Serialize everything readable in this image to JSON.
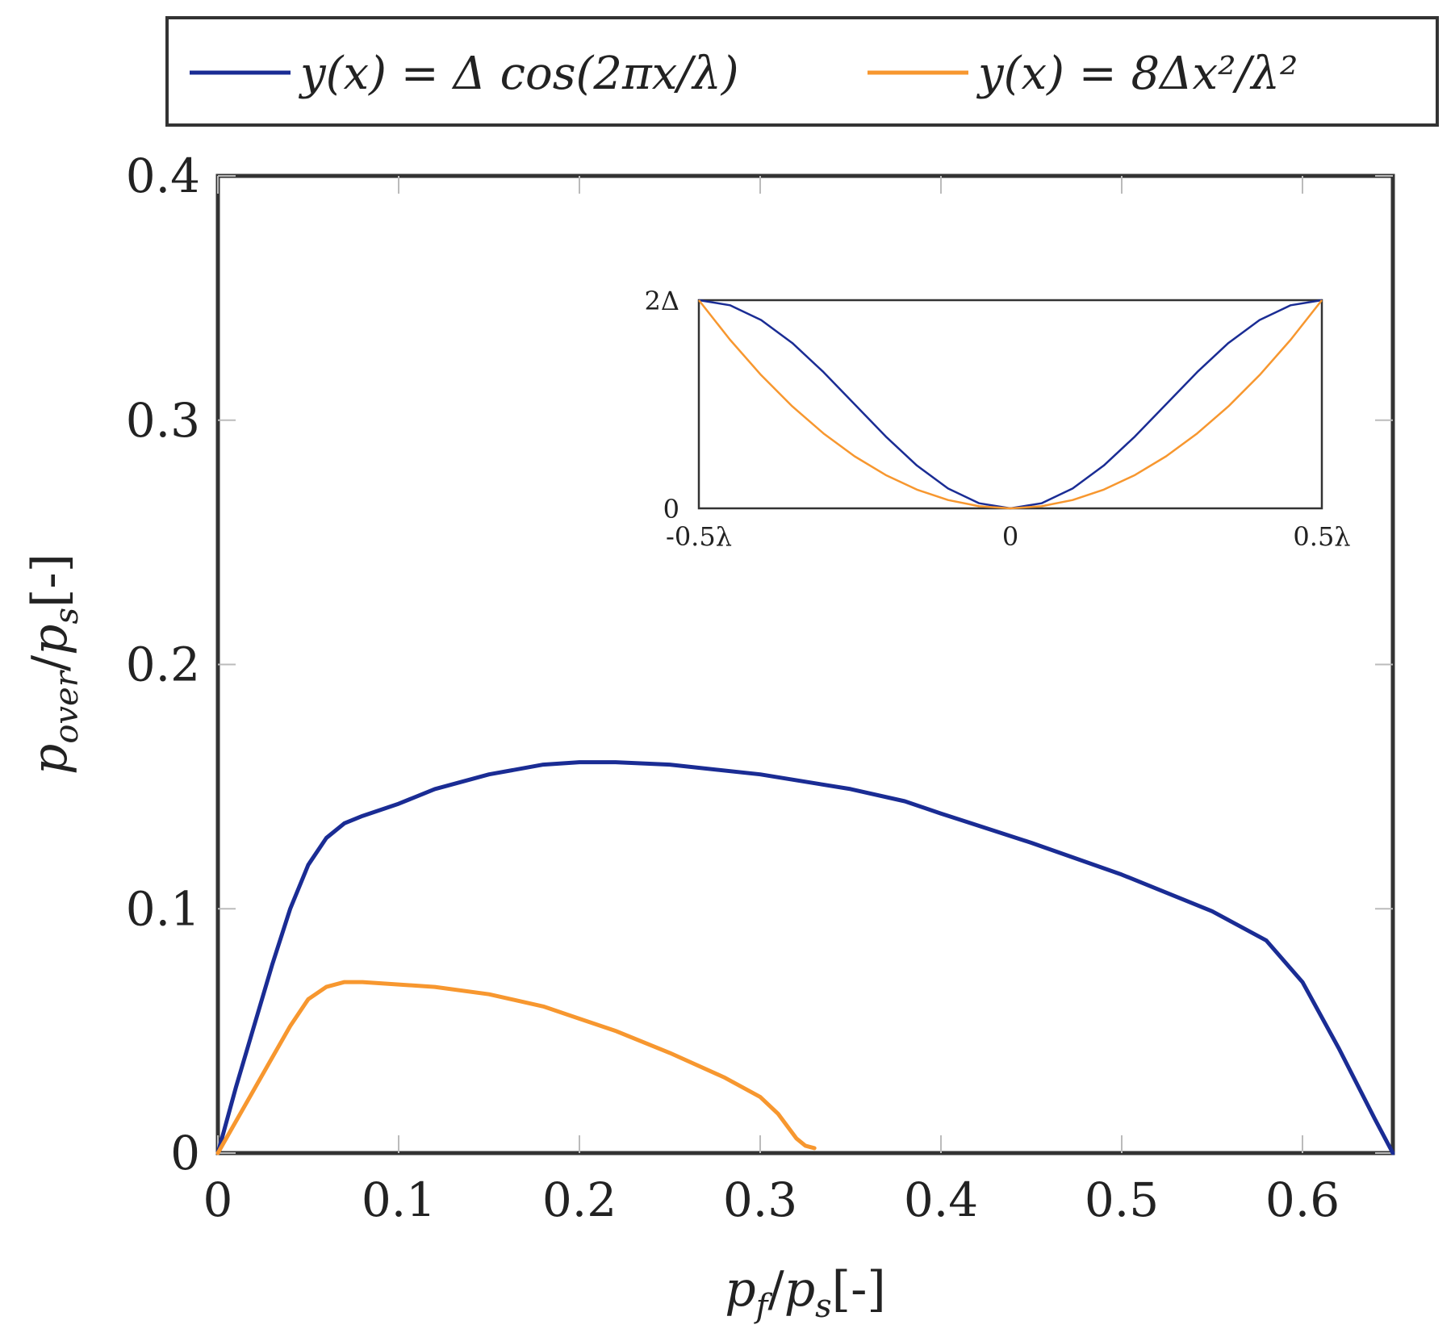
{
  "chart_data": [
    {
      "type": "line",
      "xlabel": {
        "var": "p",
        "sub": "f",
        "sep": "/",
        "var2": "p",
        "sub2": "s",
        "unit": "[-]"
      },
      "ylabel": {
        "var": "p",
        "sub": "over",
        "sep": "/",
        "var2": "p",
        "sub2": "s",
        "unit": "[-]"
      },
      "xlim": [
        0,
        0.65
      ],
      "ylim": [
        0,
        0.4
      ],
      "xticks": [
        0,
        0.1,
        0.2,
        0.3,
        0.4,
        0.5,
        0.6
      ],
      "xtick_labels": [
        "0",
        "0.1",
        "0.2",
        "0.3",
        "0.4",
        "0.5",
        "0.6"
      ],
      "yticks": [
        0,
        0.1,
        0.2,
        0.3,
        0.4
      ],
      "ytick_labels": [
        "0",
        "0.1",
        "0.2",
        "0.3",
        "0.4"
      ],
      "grid": false,
      "legend": {
        "placement": "top, above plot",
        "entries": [
          {
            "label": "y(x) = Δ cos(2πx/λ)",
            "color": "#1a2c94"
          },
          {
            "label": "y(x) = 8Δx²/λ²",
            "color": "#f7972f"
          }
        ]
      },
      "series": [
        {
          "name": "y(x) = Δ cos(2πx/λ)",
          "color": "#1a2c94",
          "x": [
            0,
            0.01,
            0.02,
            0.03,
            0.04,
            0.05,
            0.06,
            0.07,
            0.08,
            0.1,
            0.12,
            0.15,
            0.18,
            0.2,
            0.22,
            0.25,
            0.3,
            0.35,
            0.38,
            0.4,
            0.45,
            0.5,
            0.55,
            0.58,
            0.6,
            0.62,
            0.64,
            0.65
          ],
          "y": [
            0,
            0.027,
            0.052,
            0.077,
            0.1,
            0.118,
            0.129,
            0.135,
            0.138,
            0.143,
            0.149,
            0.155,
            0.159,
            0.16,
            0.16,
            0.159,
            0.155,
            0.149,
            0.144,
            0.139,
            0.127,
            0.114,
            0.099,
            0.087,
            0.07,
            0.043,
            0.014,
            0
          ]
        },
        {
          "name": "y(x) = 8Δx²/λ²",
          "color": "#f7972f",
          "x": [
            0,
            0.01,
            0.02,
            0.03,
            0.04,
            0.05,
            0.06,
            0.07,
            0.08,
            0.1,
            0.12,
            0.15,
            0.18,
            0.2,
            0.22,
            0.25,
            0.28,
            0.3,
            0.31,
            0.32,
            0.325,
            0.33
          ],
          "y": [
            0,
            0.013,
            0.026,
            0.039,
            0.052,
            0.063,
            0.068,
            0.07,
            0.07,
            0.069,
            0.068,
            0.065,
            0.06,
            0.055,
            0.05,
            0.041,
            0.031,
            0.023,
            0.016,
            0.006,
            0.003,
            0.002
          ]
        }
      ]
    },
    {
      "type": "line",
      "role": "inset",
      "xlim": [
        -0.5,
        0.5
      ],
      "ylim": [
        0,
        2
      ],
      "xtick_labels": [
        "-0.5λ",
        "0",
        "0.5λ"
      ],
      "xtick_values": [
        -0.5,
        0,
        0.5
      ],
      "ytick_labels": [
        "0",
        "2Δ"
      ],
      "ytick_values": [
        0,
        2
      ],
      "grid": false,
      "series": [
        {
          "color": "#1a2c94",
          "x": [
            -0.5,
            -0.45,
            -0.4,
            -0.35,
            -0.3,
            -0.25,
            -0.2,
            -0.15,
            -0.1,
            -0.05,
            0,
            0.05,
            0.1,
            0.15,
            0.2,
            0.25,
            0.3,
            0.35,
            0.4,
            0.45,
            0.5
          ],
          "y": [
            2.0,
            1.951,
            1.809,
            1.588,
            1.309,
            1.0,
            0.691,
            0.412,
            0.191,
            0.049,
            0.0,
            0.049,
            0.191,
            0.412,
            0.691,
            1.0,
            1.309,
            1.588,
            1.809,
            1.951,
            2.0
          ]
        },
        {
          "color": "#f7972f",
          "x": [
            -0.5,
            -0.45,
            -0.4,
            -0.35,
            -0.3,
            -0.25,
            -0.2,
            -0.15,
            -0.1,
            -0.05,
            0,
            0.05,
            0.1,
            0.15,
            0.2,
            0.25,
            0.3,
            0.35,
            0.4,
            0.45,
            0.5
          ],
          "y": [
            2.0,
            1.62,
            1.28,
            0.98,
            0.72,
            0.5,
            0.32,
            0.18,
            0.08,
            0.02,
            0.0,
            0.02,
            0.08,
            0.18,
            0.32,
            0.5,
            0.72,
            0.98,
            1.28,
            1.62,
            2.0
          ]
        }
      ]
    }
  ]
}
